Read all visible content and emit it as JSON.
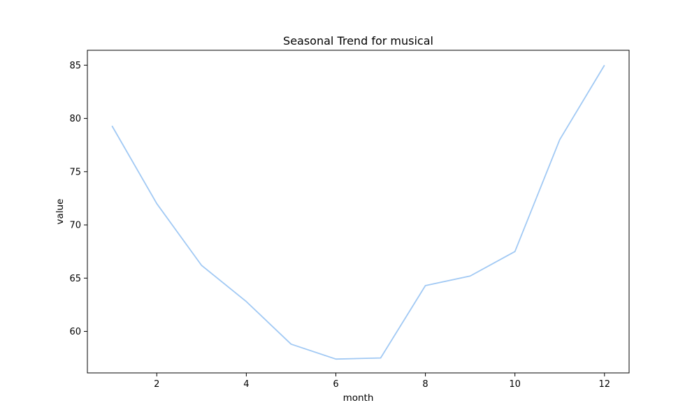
{
  "chart_data": {
    "type": "line",
    "title": "Seasonal Trend for musical",
    "xlabel": "month",
    "ylabel": "value",
    "xlim": [
      0.45,
      12.55
    ],
    "ylim": [
      56.1,
      86.4
    ],
    "xticks": [
      2,
      4,
      6,
      8,
      10,
      12
    ],
    "yticks": [
      60,
      65,
      70,
      75,
      80,
      85
    ],
    "grid": false,
    "series": [
      {
        "color": "#a1c9f4",
        "x": [
          1,
          2,
          3,
          4,
          5,
          6,
          7,
          8,
          9,
          10,
          11,
          12
        ],
        "y": [
          79.3,
          72.0,
          66.2,
          62.8,
          58.8,
          57.4,
          57.5,
          64.3,
          65.2,
          67.5,
          78.0,
          85.0
        ]
      }
    ]
  }
}
